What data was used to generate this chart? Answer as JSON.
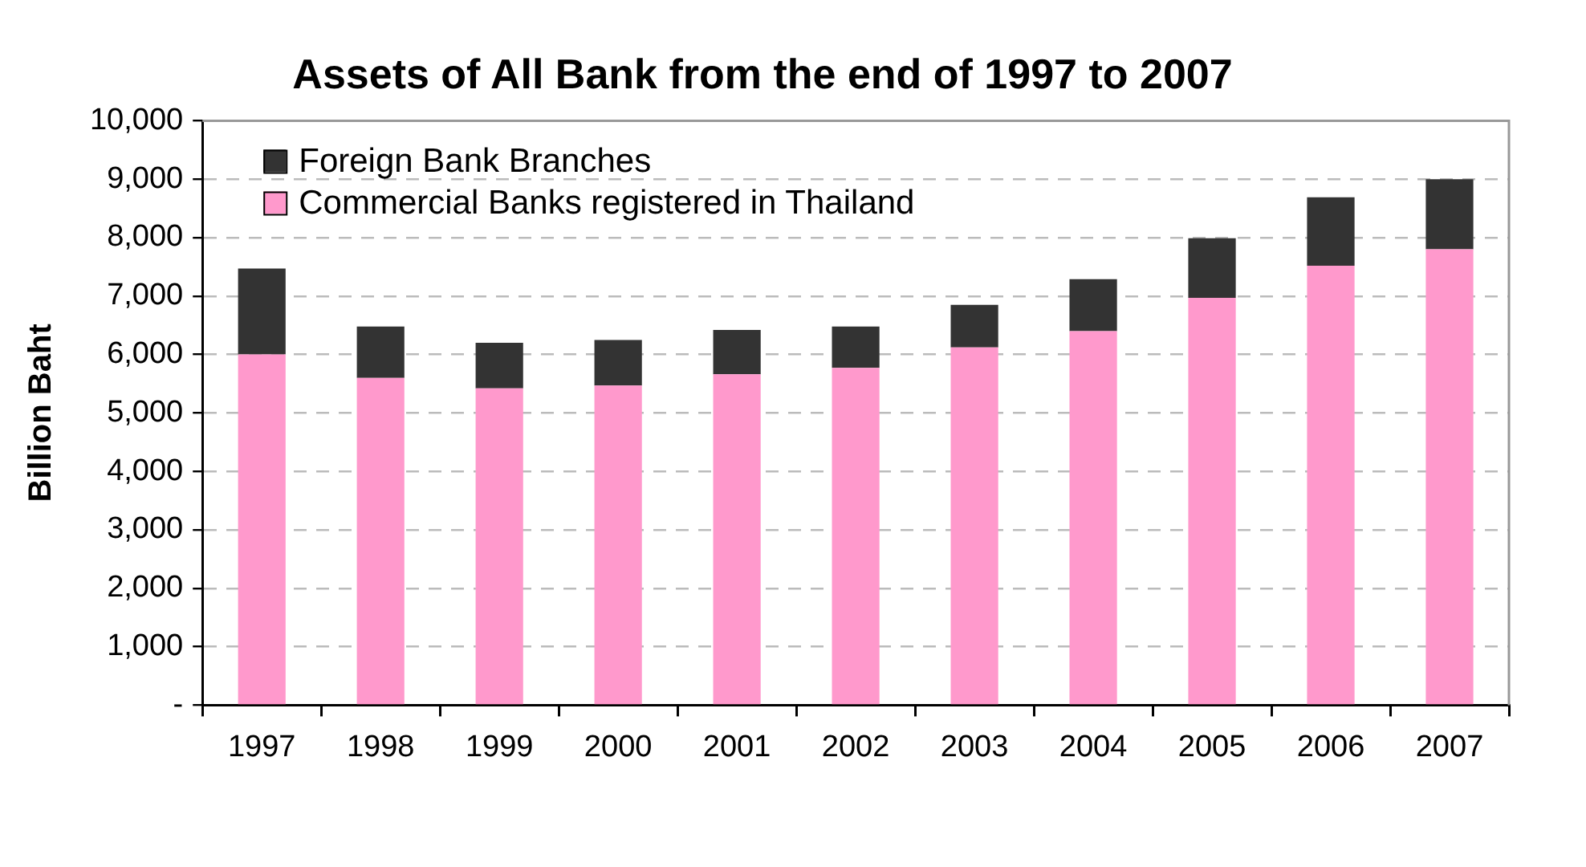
{
  "chart_data": {
    "type": "bar",
    "title": "Assets of All Bank from the end of 1997 to 2007",
    "ylabel": "Billion Baht",
    "categories": [
      "1997",
      "1998",
      "1999",
      "2000",
      "2001",
      "2002",
      "2003",
      "2004",
      "2005",
      "2006",
      "2007"
    ],
    "stacked": true,
    "series": [
      {
        "name": "Commercial Banks registered in Thailand",
        "color": "#ff99cc",
        "values": [
          6000,
          5600,
          5420,
          5470,
          5660,
          5770,
          6120,
          6400,
          6970,
          7520,
          7800
        ]
      },
      {
        "name": "Foreign Bank Branches",
        "color": "#333333",
        "values": [
          1470,
          880,
          780,
          780,
          760,
          710,
          730,
          890,
          1020,
          1170,
          1200
        ]
      }
    ],
    "ylim": [
      0,
      10000
    ],
    "yticks": [
      {
        "value": 0,
        "label": "-"
      },
      {
        "value": 1000,
        "label": "1,000"
      },
      {
        "value": 2000,
        "label": "2,000"
      },
      {
        "value": 3000,
        "label": "3,000"
      },
      {
        "value": 4000,
        "label": "4,000"
      },
      {
        "value": 5000,
        "label": "5,000"
      },
      {
        "value": 6000,
        "label": "6,000"
      },
      {
        "value": 7000,
        "label": "7,000"
      },
      {
        "value": 8000,
        "label": "8,000"
      },
      {
        "value": 9000,
        "label": "9,000"
      },
      {
        "value": 10000,
        "label": "10,000"
      }
    ],
    "grid": "y",
    "legend": "top left"
  }
}
